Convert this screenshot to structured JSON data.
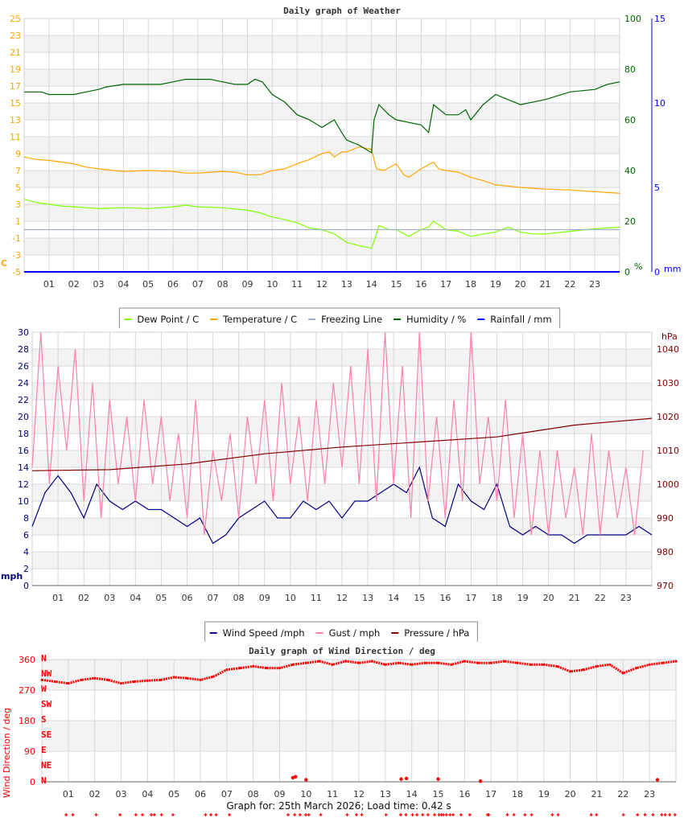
{
  "chart_data": [
    {
      "type": "line",
      "title": "Daily graph of Weather",
      "x_ticks": [
        "01",
        "02",
        "03",
        "04",
        "05",
        "06",
        "07",
        "08",
        "09",
        "10",
        "11",
        "12",
        "13",
        "14",
        "15",
        "16",
        "17",
        "18",
        "19",
        "20",
        "21",
        "22",
        "23"
      ],
      "y_left": {
        "label": "C",
        "range": [
          -5,
          25
        ],
        "ticks": [
          25,
          23,
          21,
          19,
          17,
          15,
          13,
          11,
          9,
          7,
          5,
          3,
          1,
          -1,
          -3,
          -5
        ],
        "color": "#ffa500"
      },
      "y_right": {
        "label": "%",
        "range": [
          0,
          100
        ],
        "ticks": [
          100,
          80,
          60,
          40,
          20,
          0
        ],
        "color": "#006400"
      },
      "y_right2": {
        "label": "mm",
        "range": [
          0,
          15
        ],
        "ticks": [
          15,
          10,
          5,
          0
        ],
        "color": "#0000ff"
      },
      "grid": true,
      "legend": "bottom",
      "series": [
        {
          "name": "Dew Point / C",
          "color": "#7fff00",
          "axis": "left",
          "points": [
            [
              0,
              3.6
            ],
            [
              0.5,
              3.2
            ],
            [
              1,
              3.0
            ],
            [
              1.5,
              2.8
            ],
            [
              2,
              2.7
            ],
            [
              3,
              2.5
            ],
            [
              4,
              2.6
            ],
            [
              5,
              2.5
            ],
            [
              6,
              2.7
            ],
            [
              6.5,
              2.9
            ],
            [
              7,
              2.7
            ],
            [
              8,
              2.6
            ],
            [
              9,
              2.3
            ],
            [
              9.5,
              2.0
            ],
            [
              10,
              1.5
            ],
            [
              10.5,
              1.2
            ],
            [
              11,
              0.8
            ],
            [
              11.5,
              0.2
            ],
            [
              12,
              0.0
            ],
            [
              12.5,
              -0.5
            ],
            [
              13,
              -1.5
            ],
            [
              13.5,
              -1.9
            ],
            [
              14,
              -2.2
            ],
            [
              14.2,
              -0.5
            ],
            [
              14.3,
              0.5
            ],
            [
              14.7,
              0.0
            ],
            [
              15,
              0.0
            ],
            [
              15.5,
              -0.8
            ],
            [
              16,
              0.0
            ],
            [
              16.3,
              0.3
            ],
            [
              16.5,
              1.0
            ],
            [
              17,
              0.0
            ],
            [
              17.5,
              -0.2
            ],
            [
              18,
              -0.8
            ],
            [
              18.5,
              -0.5
            ],
            [
              19,
              -0.3
            ],
            [
              19.5,
              0.3
            ],
            [
              20,
              -0.3
            ],
            [
              20.5,
              -0.5
            ],
            [
              21,
              -0.5
            ],
            [
              22,
              -0.2
            ],
            [
              23,
              0.1
            ],
            [
              24,
              0.3
            ]
          ]
        },
        {
          "name": "Temperature / C",
          "color": "#ffa500",
          "axis": "left",
          "points": [
            [
              0,
              8.6
            ],
            [
              0.5,
              8.3
            ],
            [
              1,
              8.2
            ],
            [
              1.5,
              8.0
            ],
            [
              2,
              7.8
            ],
            [
              2.5,
              7.4
            ],
            [
              3,
              7.2
            ],
            [
              4,
              6.9
            ],
            [
              5,
              7.0
            ],
            [
              6,
              6.9
            ],
            [
              6.5,
              6.7
            ],
            [
              7,
              6.7
            ],
            [
              8,
              6.9
            ],
            [
              8.5,
              6.8
            ],
            [
              9,
              6.5
            ],
            [
              9.5,
              6.5
            ],
            [
              10,
              7.0
            ],
            [
              10.5,
              7.2
            ],
            [
              11,
              7.8
            ],
            [
              11.5,
              8.3
            ],
            [
              12,
              9.0
            ],
            [
              12.3,
              9.2
            ],
            [
              12.5,
              8.6
            ],
            [
              12.8,
              9.2
            ],
            [
              13,
              9.2
            ],
            [
              13.5,
              9.8
            ],
            [
              14,
              9.5
            ],
            [
              14.2,
              7.2
            ],
            [
              14.5,
              7.0
            ],
            [
              15,
              7.8
            ],
            [
              15.3,
              6.5
            ],
            [
              15.5,
              6.2
            ],
            [
              16,
              7.2
            ],
            [
              16.5,
              8.0
            ],
            [
              16.7,
              7.2
            ],
            [
              17,
              7.0
            ],
            [
              17.5,
              6.8
            ],
            [
              18,
              6.2
            ],
            [
              18.5,
              5.8
            ],
            [
              19,
              5.3
            ],
            [
              20,
              5.0
            ],
            [
              21,
              4.8
            ],
            [
              22,
              4.7
            ],
            [
              23,
              4.5
            ],
            [
              24,
              4.3
            ]
          ]
        },
        {
          "name": "Freezing Line",
          "color": "#a0b0c8",
          "axis": "left",
          "points": [
            [
              0,
              0
            ],
            [
              24,
              0
            ]
          ]
        },
        {
          "name": "Humidity / %",
          "color": "#006400",
          "axis": "right",
          "points": [
            [
              0,
              71
            ],
            [
              0.7,
              71
            ],
            [
              1,
              70
            ],
            [
              2,
              70
            ],
            [
              2.5,
              71
            ],
            [
              3,
              72
            ],
            [
              3.3,
              73
            ],
            [
              4,
              74
            ],
            [
              5,
              74
            ],
            [
              5.5,
              74
            ],
            [
              6,
              75
            ],
            [
              6.5,
              76
            ],
            [
              7,
              76
            ],
            [
              7.5,
              76
            ],
            [
              8,
              75
            ],
            [
              8.5,
              74
            ],
            [
              9,
              74
            ],
            [
              9.3,
              76
            ],
            [
              9.6,
              75
            ],
            [
              10,
              70
            ],
            [
              10.5,
              67
            ],
            [
              11,
              62
            ],
            [
              11.5,
              60
            ],
            [
              12,
              57
            ],
            [
              12.5,
              60
            ],
            [
              12.8,
              55
            ],
            [
              13,
              52
            ],
            [
              13.5,
              50
            ],
            [
              14,
              47
            ],
            [
              14.1,
              60
            ],
            [
              14.3,
              66
            ],
            [
              14.7,
              62
            ],
            [
              15,
              60
            ],
            [
              15.5,
              59
            ],
            [
              16,
              58
            ],
            [
              16.3,
              55
            ],
            [
              16.5,
              66
            ],
            [
              17,
              62
            ],
            [
              17.5,
              62
            ],
            [
              17.8,
              64
            ],
            [
              18,
              60
            ],
            [
              18.5,
              66
            ],
            [
              19,
              70
            ],
            [
              19.5,
              68
            ],
            [
              20,
              66
            ],
            [
              20.5,
              67
            ],
            [
              21,
              68
            ],
            [
              22,
              71
            ],
            [
              23,
              72
            ],
            [
              23.5,
              74
            ],
            [
              24,
              75
            ]
          ]
        },
        {
          "name": "Rainfall / mm",
          "color": "#0000ff",
          "axis": "right2",
          "points": [
            [
              0,
              0
            ],
            [
              24,
              0
            ]
          ]
        }
      ]
    },
    {
      "type": "line",
      "x_ticks": [
        "01",
        "02",
        "03",
        "04",
        "05",
        "06",
        "07",
        "08",
        "09",
        "10",
        "11",
        "12",
        "13",
        "14",
        "15",
        "16",
        "17",
        "18",
        "19",
        "20",
        "21",
        "22",
        "23"
      ],
      "y_left": {
        "label": "mph",
        "range": [
          0,
          30
        ],
        "ticks": [
          30,
          28,
          26,
          24,
          22,
          20,
          18,
          16,
          14,
          12,
          10,
          8,
          6,
          4,
          2,
          0
        ],
        "color": "#000080"
      },
      "y_right": {
        "label": "hPa",
        "range": [
          970,
          1045
        ],
        "ticks": [
          1040,
          1030,
          1020,
          1010,
          1000,
          990,
          980,
          970
        ],
        "color": "#800000"
      },
      "grid": true,
      "legend": "bottom",
      "series": [
        {
          "name": "Wind Speed /mph",
          "color": "#000080",
          "axis": "left",
          "values_every_half_hour": [
            7,
            11,
            13,
            11,
            8,
            12,
            10,
            9,
            10,
            9,
            9,
            8,
            7,
            8,
            5,
            6,
            8,
            9,
            10,
            8,
            8,
            10,
            9,
            10,
            8,
            10,
            10,
            11,
            12,
            11,
            14,
            8,
            7,
            12,
            10,
            9,
            12,
            7,
            6,
            7,
            6,
            6,
            5,
            6,
            6,
            6,
            6,
            7,
            6
          ]
        },
        {
          "name": "Gust / mph",
          "color": "#ff80a8",
          "axis": "left",
          "values_every_20_min": [
            14,
            30,
            12,
            26,
            16,
            28,
            10,
            24,
            8,
            22,
            12,
            20,
            10,
            22,
            12,
            20,
            10,
            18,
            8,
            22,
            6,
            16,
            10,
            18,
            8,
            20,
            12,
            22,
            10,
            24,
            12,
            20,
            10,
            22,
            12,
            24,
            14,
            26,
            12,
            28,
            10,
            30,
            12,
            26,
            8,
            30,
            10,
            20,
            8,
            22,
            10,
            30,
            12,
            20,
            10,
            22,
            8,
            18,
            6,
            16,
            6,
            16,
            8,
            14,
            6,
            18,
            6,
            16,
            8,
            14,
            6,
            16
          ]
        },
        {
          "name": "Pressure / hPa",
          "color": "#800000",
          "axis": "right",
          "points": [
            [
              0,
              1004
            ],
            [
              3,
              1004.3
            ],
            [
              6,
              1006
            ],
            [
              9,
              1009
            ],
            [
              12,
              1011
            ],
            [
              15,
              1012.5
            ],
            [
              18,
              1014
            ],
            [
              21,
              1017.5
            ],
            [
              24,
              1019.5
            ]
          ]
        }
      ]
    },
    {
      "type": "scatter",
      "title": "Daily graph of Wind Direction / deg",
      "x_ticks": [
        "01",
        "02",
        "03",
        "04",
        "05",
        "06",
        "07",
        "08",
        "09",
        "10",
        "11",
        "12",
        "13",
        "14",
        "15",
        "16",
        "17",
        "18",
        "19",
        "20",
        "21",
        "22",
        "23"
      ],
      "y_left": {
        "label": "Wind Direction / deg",
        "range": [
          0,
          360
        ],
        "ticks": [
          360,
          270,
          180,
          90,
          0
        ],
        "color": "#ff0000"
      },
      "compass_labels": [
        "N",
        "NW",
        "W",
        "SW",
        "S",
        "SE",
        "E",
        "NE",
        "N"
      ],
      "grid": true,
      "series": [
        {
          "color": "#ff0000",
          "values_every_half_hour": [
            300,
            295,
            290,
            300,
            305,
            300,
            290,
            295,
            298,
            300,
            308,
            305,
            300,
            310,
            330,
            335,
            340,
            335,
            335,
            345,
            350,
            355,
            345,
            355,
            350,
            355,
            345,
            350,
            345,
            350,
            350,
            345,
            355,
            350,
            350,
            355,
            350,
            345,
            345,
            340,
            325,
            330,
            340,
            345,
            320,
            335,
            345,
            350,
            355
          ],
          "north_points": [
            [
              9.5,
              12
            ],
            [
              9.6,
              15
            ],
            [
              10,
              6
            ],
            [
              13.6,
              8
            ],
            [
              13.8,
              10
            ],
            [
              15,
              8
            ],
            [
              16.6,
              2
            ],
            [
              23.3,
              6
            ]
          ]
        }
      ]
    }
  ],
  "footer": "Graph for: 25th March 2026; Load time: 0.42 s"
}
